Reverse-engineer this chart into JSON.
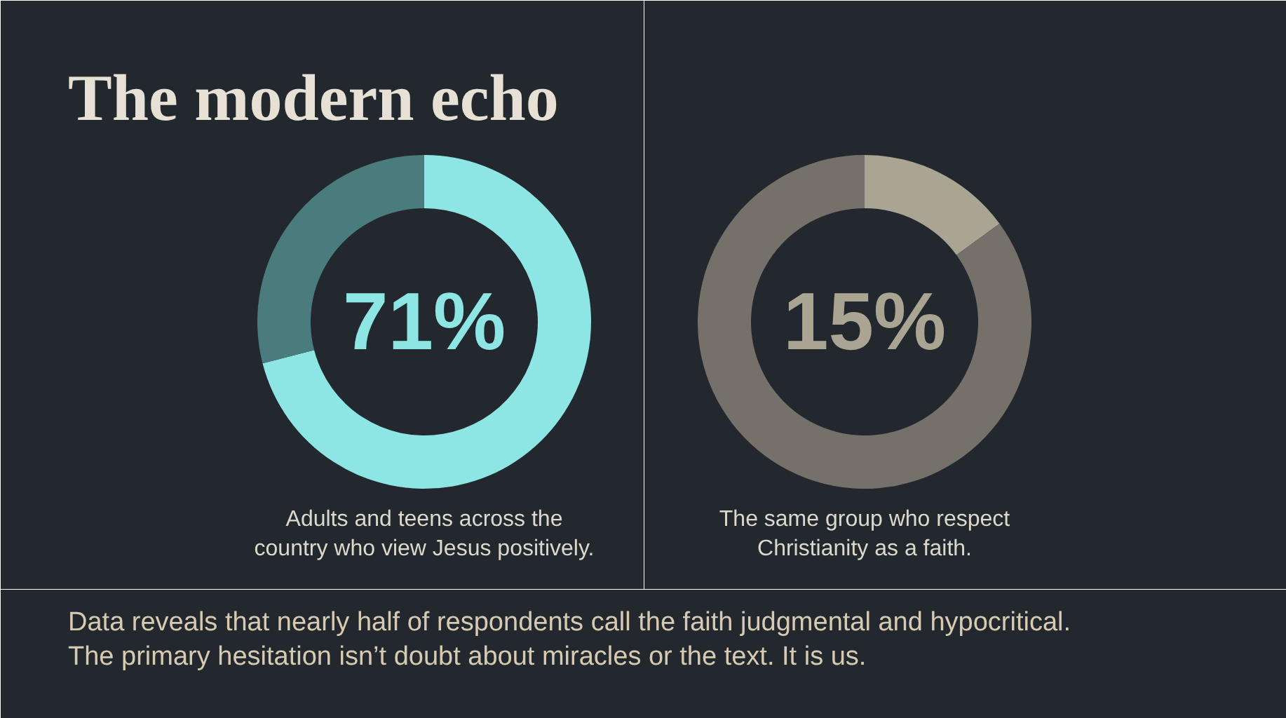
{
  "chart_data": [
    {
      "type": "donut",
      "title": "The modern echo",
      "categories": [
        null,
        null
      ],
      "values": [
        71,
        29
      ],
      "colors": [
        "#8ee6e4",
        "#4a7c7e"
      ],
      "annotations": [
        "71%",
        "Adults and teens across the country who view Jesus positively."
      ]
    },
    {
      "type": "donut",
      "categories": [
        null,
        null
      ],
      "values": [
        15,
        85
      ],
      "colors": [
        "#aaa493",
        "#75716a"
      ],
      "annotations": [
        "15%",
        "The same group who respect Christianity as a faith."
      ]
    },
    {
      "type": "other",
      "annotations": [
        "Data reveals that nearly half of respondents call the faith judgmental and hypocritical. The primary hesitation isn’t doubt about miracles or the text. It is us."
      ]
    }
  ]
}
